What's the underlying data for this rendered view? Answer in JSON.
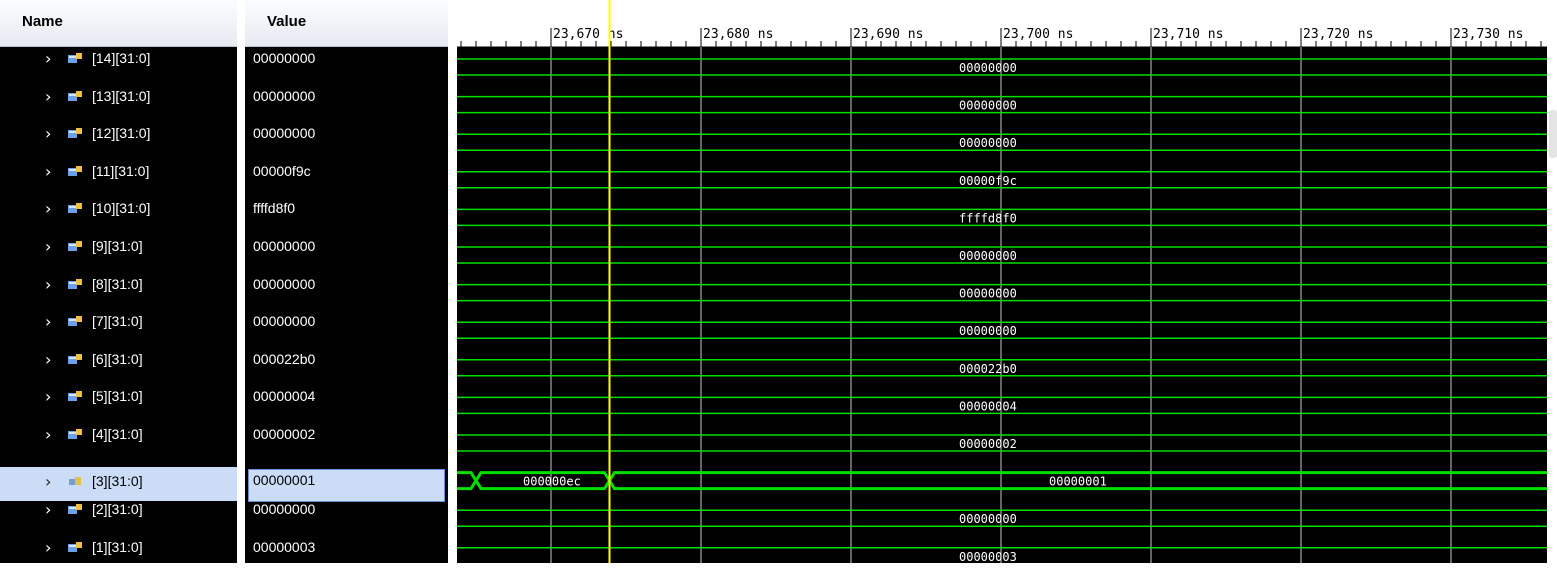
{
  "headers": {
    "name": "Name",
    "value": "Value"
  },
  "signals": [
    {
      "name": "[14][31:0]",
      "value": "00000000",
      "selected": false
    },
    {
      "name": "[13][31:0]",
      "value": "00000000",
      "selected": false
    },
    {
      "name": "[12][31:0]",
      "value": "00000000",
      "selected": false
    },
    {
      "name": "[11][31:0]",
      "value": "00000f9c",
      "selected": false
    },
    {
      "name": "[10][31:0]",
      "value": "ffffd8f0",
      "selected": false
    },
    {
      "name": "[9][31:0]",
      "value": "00000000",
      "selected": false
    },
    {
      "name": "[8][31:0]",
      "value": "00000000",
      "selected": false
    },
    {
      "name": "[7][31:0]",
      "value": "00000000",
      "selected": false
    },
    {
      "name": "[6][31:0]",
      "value": "000022b0",
      "selected": false
    },
    {
      "name": "[5][31:0]",
      "value": "00000004",
      "selected": false
    },
    {
      "name": "[4][31:0]",
      "value": "00000002",
      "selected": false
    },
    {
      "name": "[3][31:0]",
      "value": "00000001",
      "selected": true
    },
    {
      "name": "[2][31:0]",
      "value": "00000000",
      "selected": false
    },
    {
      "name": "[1][31:0]",
      "value": "00000003",
      "selected": false
    }
  ],
  "timeline": {
    "unit": "ns",
    "ticks": [
      "23,670 ns",
      "23,680 ns",
      "23,690 ns",
      "23,700 ns",
      "23,710 ns",
      "23,720 ns",
      "23,730 ns"
    ],
    "cursor_label": "23,673.9"
  },
  "waveforms": [
    {
      "segments": [
        {
          "label": "00000000"
        }
      ]
    },
    {
      "segments": [
        {
          "label": "00000000"
        }
      ]
    },
    {
      "segments": [
        {
          "label": "00000000"
        }
      ]
    },
    {
      "segments": [
        {
          "label": "00000f9c"
        }
      ]
    },
    {
      "segments": [
        {
          "label": "ffffd8f0"
        }
      ]
    },
    {
      "segments": [
        {
          "label": "00000000"
        }
      ]
    },
    {
      "segments": [
        {
          "label": "00000000"
        }
      ]
    },
    {
      "segments": [
        {
          "label": "00000000"
        }
      ]
    },
    {
      "segments": [
        {
          "label": "000022b0"
        }
      ]
    },
    {
      "segments": [
        {
          "label": "00000004"
        }
      ]
    },
    {
      "segments": [
        {
          "label": "00000002"
        }
      ]
    },
    {
      "segments": [
        {
          "label": "000000ec"
        },
        {
          "label": "00000001"
        }
      ]
    },
    {
      "segments": [
        {
          "label": "00000000"
        }
      ]
    },
    {
      "segments": [
        {
          "label": "00000003"
        }
      ]
    }
  ],
  "colors": {
    "wave": "#00e000",
    "cursor": "#ffff00",
    "grid": "#c8c8c8",
    "background": "#000000"
  }
}
